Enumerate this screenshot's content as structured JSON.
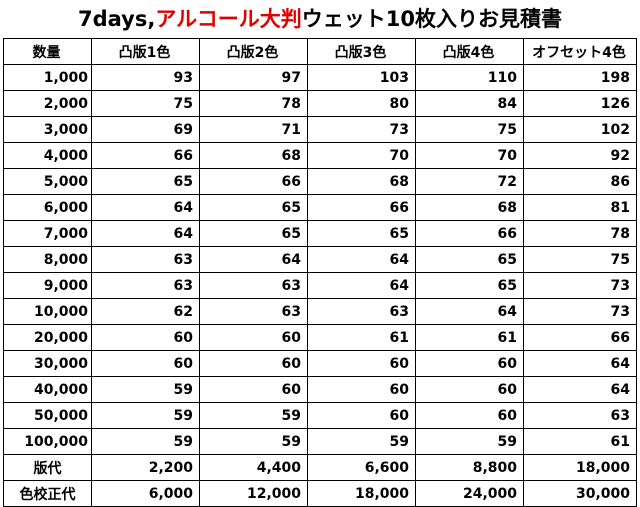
{
  "title": {
    "prefix": "7days,",
    "highlight": "アルコール大判",
    "suffix": "ウェット10枚入りお見積書"
  },
  "colors": {
    "highlight": "#e00000",
    "border": "#000000"
  },
  "table": {
    "headers": [
      "数量",
      "凸版1色",
      "凸版2色",
      "凸版3色",
      "凸版4色",
      "オフセット4色"
    ],
    "rows": [
      [
        "1,000",
        "93",
        "97",
        "103",
        "110",
        "198"
      ],
      [
        "2,000",
        "75",
        "78",
        "80",
        "84",
        "126"
      ],
      [
        "3,000",
        "69",
        "71",
        "73",
        "75",
        "102"
      ],
      [
        "4,000",
        "66",
        "68",
        "70",
        "70",
        "92"
      ],
      [
        "5,000",
        "65",
        "66",
        "68",
        "72",
        "86"
      ],
      [
        "6,000",
        "64",
        "65",
        "66",
        "68",
        "81"
      ],
      [
        "7,000",
        "64",
        "65",
        "65",
        "66",
        "78"
      ],
      [
        "8,000",
        "63",
        "64",
        "64",
        "65",
        "75"
      ],
      [
        "9,000",
        "63",
        "63",
        "64",
        "65",
        "73"
      ],
      [
        "10,000",
        "62",
        "63",
        "63",
        "64",
        "73"
      ],
      [
        "20,000",
        "60",
        "60",
        "61",
        "61",
        "66"
      ],
      [
        "30,000",
        "60",
        "60",
        "60",
        "60",
        "64"
      ],
      [
        "40,000",
        "59",
        "60",
        "60",
        "60",
        "64"
      ],
      [
        "50,000",
        "59",
        "59",
        "60",
        "60",
        "63"
      ],
      [
        "100,000",
        "59",
        "59",
        "59",
        "59",
        "61"
      ]
    ],
    "footer_rows": [
      [
        "版代",
        "2,200",
        "4,400",
        "6,600",
        "8,800",
        "18,000"
      ],
      [
        "色校正代",
        "6,000",
        "12,000",
        "18,000",
        "24,000",
        "30,000"
      ]
    ]
  }
}
